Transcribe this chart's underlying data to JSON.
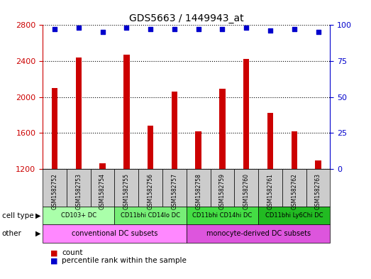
{
  "title": "GDS5663 / 1449943_at",
  "samples": [
    "GSM1582752",
    "GSM1582753",
    "GSM1582754",
    "GSM1582755",
    "GSM1582756",
    "GSM1582757",
    "GSM1582758",
    "GSM1582759",
    "GSM1582760",
    "GSM1582761",
    "GSM1582762",
    "GSM1582763"
  ],
  "counts": [
    2100,
    2440,
    1260,
    2470,
    1680,
    2060,
    1620,
    2090,
    2420,
    1820,
    1620,
    1290
  ],
  "percentile_ranks": [
    97,
    98,
    95,
    98,
    97,
    97,
    97,
    97,
    98,
    96,
    97,
    95
  ],
  "ylim_left": [
    1200,
    2800
  ],
  "ylim_right": [
    0,
    100
  ],
  "yticks_left": [
    1200,
    1600,
    2000,
    2400,
    2800
  ],
  "yticks_right": [
    0,
    25,
    50,
    75,
    100
  ],
  "bar_color": "#cc0000",
  "dot_color": "#0000cc",
  "cell_type_data": [
    {
      "label": "CD103+ DC",
      "start": 0,
      "end": 2,
      "color": "#aaffaa"
    },
    {
      "label": "CD11bhi CD14lo DC",
      "start": 3,
      "end": 5,
      "color": "#77ee77"
    },
    {
      "label": "CD11bhi CD14hi DC",
      "start": 6,
      "end": 8,
      "color": "#44dd44"
    },
    {
      "label": "CD11bhi Ly6Chi DC",
      "start": 9,
      "end": 11,
      "color": "#22bb22"
    }
  ],
  "other_data": [
    {
      "label": "conventional DC subsets",
      "start": 0,
      "end": 5,
      "color": "#ff88ff"
    },
    {
      "label": "monocyte-derived DC subsets",
      "start": 6,
      "end": 11,
      "color": "#dd55dd"
    }
  ],
  "cell_type_row_label": "cell type",
  "other_row_label": "other",
  "legend_count_label": "count",
  "legend_pct_label": "percentile rank within the sample",
  "bar_width": 0.25,
  "tick_gray": "#cccccc",
  "spine_left_color": "#cc0000",
  "spine_right_color": "#0000cc"
}
